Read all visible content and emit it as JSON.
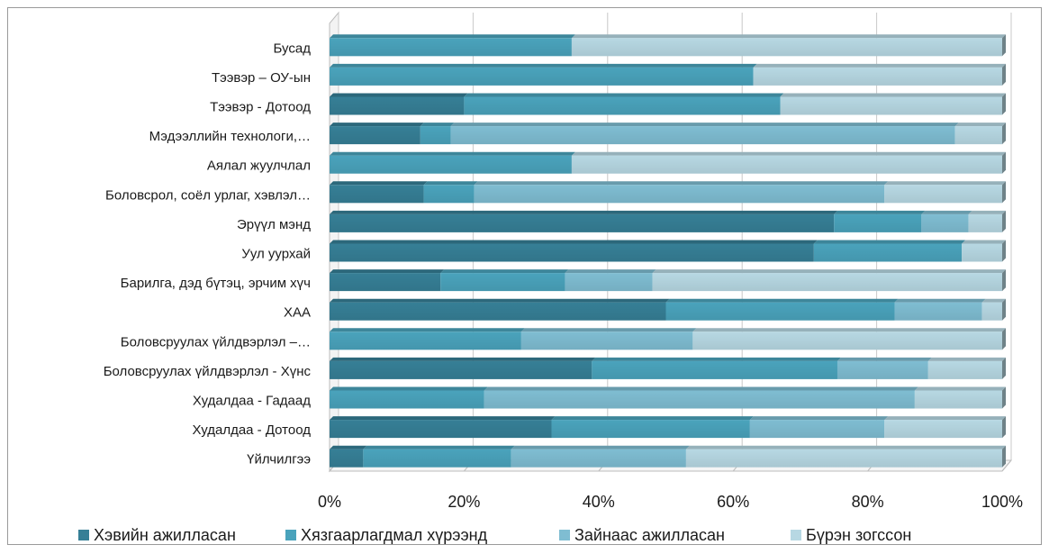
{
  "chart_data": {
    "type": "bar",
    "orientation": "horizontal",
    "stacked": "percent",
    "categories": [
      "Бусад",
      "Тээвэр – ОУ-ын",
      "Тээвэр - Дотоод",
      "Мэдээллийн технологи,…",
      "Аялал жуулчлал",
      "Боловсрол, соёл урлаг, хэвлэл…",
      "Эрүүл мэнд",
      "Уул уурхай",
      "Барилга, дэд бүтэц, эрчим хүч",
      "ХАА",
      "Боловсруулах үйлдвэрлэл –…",
      "Боловсруулах үйлдвэрлэл - Хүнс",
      "Худалдаа - Гадаад",
      "Худалдаа - Дотоод",
      "Үйлчилгээ"
    ],
    "series": [
      {
        "name": "Хэвийн ажилласан",
        "color": "#367f96",
        "values": [
          0,
          0,
          20,
          13.5,
          0,
          14,
          75,
          72,
          16.5,
          50,
          0,
          39,
          0,
          33,
          5
        ]
      },
      {
        "name": "Хязгаарлагдмал хүрээнд",
        "color": "#4aa3bc",
        "values": [
          36,
          63,
          47,
          4.5,
          36,
          7.5,
          13,
          22,
          18.5,
          34,
          28.5,
          36.5,
          23,
          29.5,
          22
        ]
      },
      {
        "name": "Зайнаас ажилласан",
        "color": "#7fbdd2",
        "values": [
          0,
          0,
          0,
          75,
          0,
          61,
          7,
          0,
          13,
          13,
          25.5,
          13.5,
          64,
          20,
          26
        ]
      },
      {
        "name": "Бүрэн зогссон",
        "color": "#b7d8e3",
        "values": [
          64,
          37,
          33,
          7,
          64,
          17.5,
          5,
          6,
          52,
          3,
          46,
          11,
          13,
          17.5,
          47
        ]
      }
    ],
    "xlim": [
      0,
      100
    ],
    "xticks": [
      "0%",
      "20%",
      "40%",
      "60%",
      "80%",
      "100%"
    ],
    "grid": true,
    "legend_position": "bottom"
  }
}
